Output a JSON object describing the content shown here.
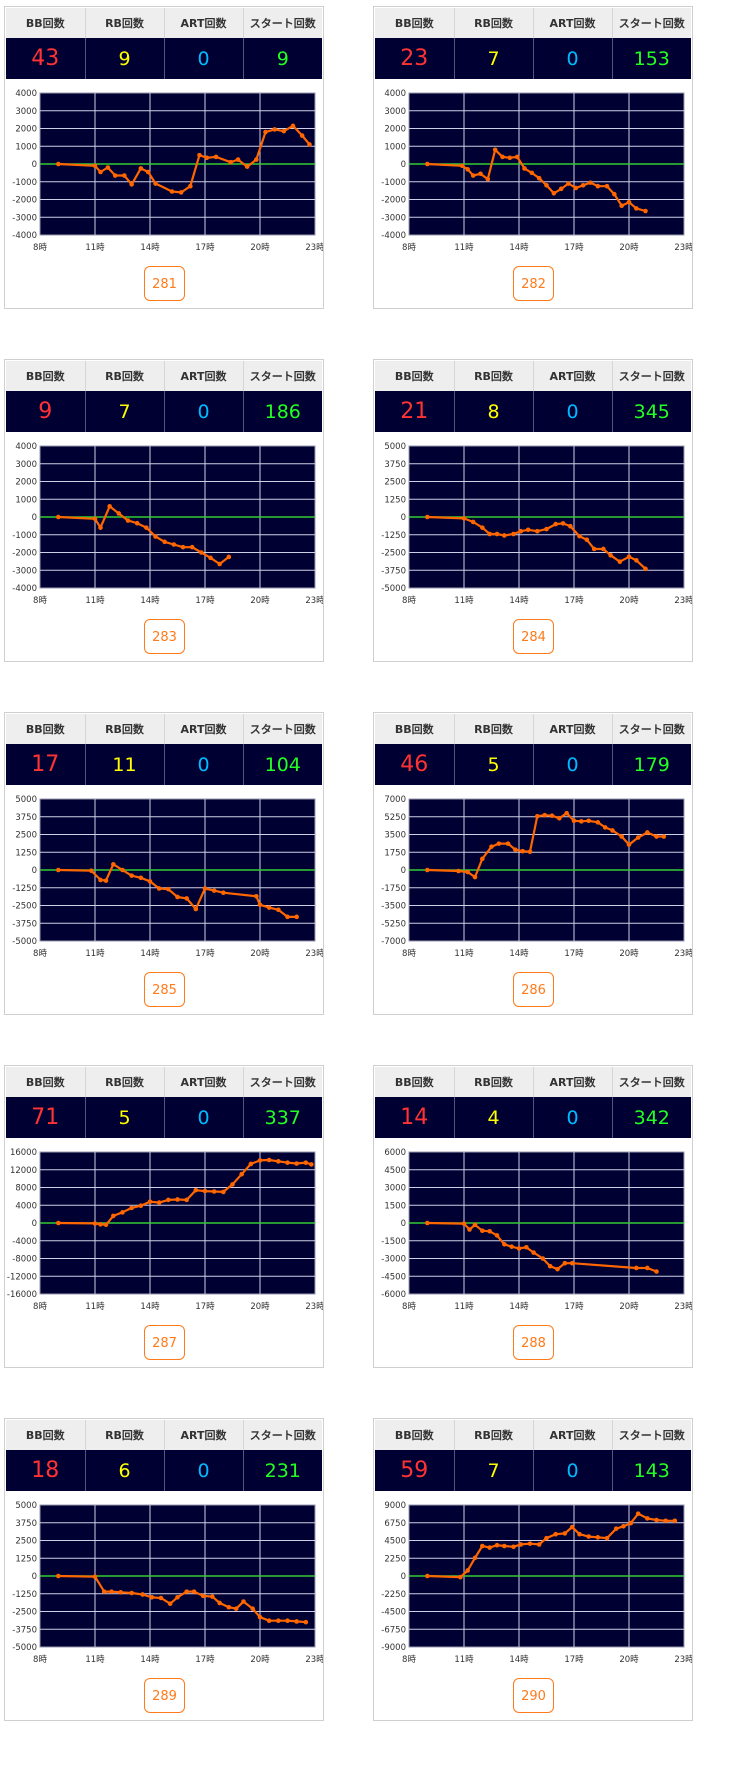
{
  "headers": {
    "bb": "BB回数",
    "rb": "RB回数",
    "art": "ART回数",
    "start": "スタート回数"
  },
  "colors": {
    "bb": "#ff3333",
    "rb": "#ffff00",
    "art": "#00bbff",
    "start": "#22ff22",
    "plot_bg": "#000033",
    "line": "#ff6600",
    "zero_line": "#33cc33",
    "button": "#ff7a1a"
  },
  "x_ticks": [
    "8時",
    "11時",
    "14時",
    "17時",
    "20時",
    "23時"
  ],
  "machines": [
    {
      "id": "281",
      "bb": "43",
      "rb": "9",
      "art": "0",
      "start": "9",
      "chart_data": {
        "type": "line",
        "xlim": [
          8,
          23
        ],
        "ylim": [
          -4000,
          4000
        ],
        "yticks": [
          "4000",
          "3000",
          "2000",
          "1000",
          "0",
          "-1000",
          "-2000",
          "-3000",
          "-4000"
        ],
        "x": [
          9,
          11,
          11.3,
          11.7,
          12.1,
          12.6,
          13,
          13.5,
          13.9,
          14.3,
          15.2,
          15.7,
          16.2,
          16.7,
          17.1,
          17.6,
          18.4,
          18.8,
          19.3,
          19.8,
          20.3,
          20.8,
          21.3,
          21.8,
          22.3,
          22.7
        ],
        "y": [
          0,
          -100,
          -450,
          -200,
          -650,
          -650,
          -1150,
          -250,
          -450,
          -1100,
          -1550,
          -1600,
          -1250,
          500,
          350,
          400,
          100,
          250,
          -150,
          250,
          1800,
          1950,
          1850,
          2150,
          1600,
          1100
        ]
      }
    },
    {
      "id": "282",
      "bb": "23",
      "rb": "7",
      "art": "0",
      "start": "153",
      "chart_data": {
        "type": "line",
        "xlim": [
          8,
          23
        ],
        "ylim": [
          -4000,
          4000
        ],
        "yticks": [
          "4000",
          "3000",
          "2000",
          "1000",
          "0",
          "-1000",
          "-2000",
          "-3000",
          "-4000"
        ],
        "x": [
          9,
          10.9,
          11.2,
          11.5,
          11.9,
          12.3,
          12.7,
          13.1,
          13.5,
          13.9,
          14.3,
          14.7,
          15.1,
          15.5,
          15.9,
          16.3,
          16.7,
          17.1,
          17.5,
          17.9,
          18.3,
          18.8,
          19.2,
          19.6,
          20,
          20.4,
          20.9
        ],
        "y": [
          0,
          -100,
          -300,
          -650,
          -550,
          -850,
          800,
          400,
          350,
          400,
          -250,
          -500,
          -800,
          -1200,
          -1650,
          -1400,
          -1100,
          -1350,
          -1200,
          -1050,
          -1250,
          -1250,
          -1700,
          -2350,
          -2150,
          -2500,
          -2650
        ]
      }
    },
    {
      "id": "283",
      "bb": "9",
      "rb": "7",
      "art": "0",
      "start": "186",
      "chart_data": {
        "type": "line",
        "xlim": [
          8,
          23
        ],
        "ylim": [
          -4000,
          4000
        ],
        "yticks": [
          "4000",
          "3000",
          "2000",
          "1000",
          "0",
          "-1000",
          "-2000",
          "-3000",
          "-4000"
        ],
        "x": [
          9,
          11,
          11.3,
          11.8,
          12.3,
          12.8,
          13.3,
          13.8,
          14.3,
          14.8,
          15.3,
          15.8,
          16.3,
          16.8,
          17.3,
          17.8,
          18.3
        ],
        "y": [
          0,
          -100,
          -600,
          600,
          200,
          -200,
          -350,
          -600,
          -1100,
          -1400,
          -1550,
          -1700,
          -1700,
          -2000,
          -2300,
          -2650,
          -2250
        ]
      }
    },
    {
      "id": "284",
      "bb": "21",
      "rb": "8",
      "art": "0",
      "start": "345",
      "chart_data": {
        "type": "line",
        "xlim": [
          8,
          23
        ],
        "ylim": [
          -5000,
          5000
        ],
        "yticks": [
          "5000",
          "3750",
          "2500",
          "1250",
          "0",
          "-1250",
          "-2500",
          "-3750",
          "-5000"
        ],
        "x": [
          9,
          11,
          11.5,
          12,
          12.4,
          12.8,
          13.2,
          13.7,
          14.1,
          14.5,
          15,
          15.5,
          16,
          16.4,
          16.8,
          17.3,
          17.7,
          18.1,
          18.6,
          19,
          19.5,
          20,
          20.4,
          20.9
        ],
        "y": [
          0,
          -100,
          -350,
          -750,
          -1200,
          -1200,
          -1300,
          -1200,
          -1000,
          -900,
          -1000,
          -850,
          -500,
          -450,
          -650,
          -1350,
          -1600,
          -2250,
          -2250,
          -2700,
          -3150,
          -2800,
          -3050,
          -3650
        ]
      }
    },
    {
      "id": "285",
      "bb": "17",
      "rb": "11",
      "art": "0",
      "start": "104",
      "chart_data": {
        "type": "line",
        "xlim": [
          8,
          23
        ],
        "ylim": [
          -5000,
          5000
        ],
        "yticks": [
          "5000",
          "3750",
          "2500",
          "1250",
          "0",
          "-1250",
          "-2500",
          "-3750",
          "-5000"
        ],
        "x": [
          9,
          10.8,
          11.3,
          11.6,
          12,
          12.5,
          13,
          13.5,
          14,
          14.5,
          15,
          15.5,
          16,
          16.5,
          17,
          17.5,
          18,
          19.8,
          20,
          20.5,
          21,
          21.5,
          22
        ],
        "y": [
          0,
          -50,
          -700,
          -750,
          400,
          0,
          -400,
          -550,
          -800,
          -1300,
          -1350,
          -1900,
          -2000,
          -2750,
          -1300,
          -1450,
          -1600,
          -1850,
          -2450,
          -2650,
          -2800,
          -3300,
          -3300
        ]
      }
    },
    {
      "id": "286",
      "bb": "46",
      "rb": "5",
      "art": "0",
      "start": "179",
      "chart_data": {
        "type": "line",
        "xlim": [
          8,
          23
        ],
        "ylim": [
          -7000,
          7000
        ],
        "yticks": [
          "7000",
          "5250",
          "3500",
          "1750",
          "0",
          "-1750",
          "-3500",
          "-5250",
          "-7000"
        ],
        "x": [
          9,
          10.7,
          11.2,
          11.6,
          12,
          12.5,
          12.9,
          13.4,
          13.8,
          14.2,
          14.6,
          15,
          15.4,
          15.8,
          16.2,
          16.6,
          17,
          17.4,
          17.8,
          18.3,
          18.7,
          19.1,
          19.6,
          20,
          20.5,
          21,
          21.5,
          21.9
        ],
        "y": [
          0,
          -100,
          -200,
          -700,
          1100,
          2300,
          2600,
          2600,
          2000,
          1850,
          1800,
          5300,
          5400,
          5350,
          5100,
          5600,
          4850,
          4800,
          4850,
          4700,
          4200,
          3900,
          3300,
          2500,
          3200,
          3700,
          3300,
          3300
        ]
      }
    },
    {
      "id": "287",
      "bb": "71",
      "rb": "5",
      "art": "0",
      "start": "337",
      "chart_data": {
        "type": "line",
        "xlim": [
          8,
          23
        ],
        "ylim": [
          -16000,
          16000
        ],
        "yticks": [
          "16000",
          "12000",
          "8000",
          "4000",
          "0",
          "-4000",
          "-8000",
          "-12000",
          "-16000"
        ],
        "x": [
          9,
          11,
          11.3,
          11.6,
          12,
          12.5,
          13,
          13.5,
          14,
          14.5,
          15,
          15.5,
          16,
          16.5,
          17,
          17.5,
          18,
          18.5,
          19,
          19.5,
          20,
          20.5,
          21,
          21.5,
          22,
          22.5,
          22.8
        ],
        "y": [
          0,
          -100,
          -300,
          -400,
          1600,
          2400,
          3400,
          3900,
          4800,
          4600,
          5200,
          5300,
          5200,
          7400,
          7200,
          7100,
          7000,
          8700,
          11000,
          13300,
          14100,
          14200,
          13900,
          13600,
          13400,
          13600,
          13200
        ]
      }
    },
    {
      "id": "288",
      "bb": "14",
      "rb": "4",
      "art": "0",
      "start": "342",
      "chart_data": {
        "type": "line",
        "xlim": [
          8,
          23
        ],
        "ylim": [
          -6000,
          6000
        ],
        "yticks": [
          "6000",
          "4500",
          "3000",
          "1500",
          "0",
          "-1500",
          "-3000",
          "-4500",
          "-6000"
        ],
        "x": [
          9,
          11,
          11.3,
          11.6,
          12,
          12.4,
          12.8,
          13.2,
          13.6,
          14,
          14.4,
          14.8,
          15.3,
          15.7,
          16.1,
          16.5,
          16.9,
          20.4,
          21,
          21.5
        ],
        "y": [
          0,
          -50,
          -550,
          -150,
          -650,
          -700,
          -1050,
          -1800,
          -2000,
          -2150,
          -2050,
          -2500,
          -3000,
          -3650,
          -3900,
          -3400,
          -3400,
          -3800,
          -3800,
          -4100
        ]
      }
    },
    {
      "id": "289",
      "bb": "18",
      "rb": "6",
      "art": "0",
      "start": "231",
      "chart_data": {
        "type": "line",
        "xlim": [
          8,
          23
        ],
        "ylim": [
          -5000,
          5000
        ],
        "yticks": [
          "5000",
          "3750",
          "2500",
          "1250",
          "0",
          "-1250",
          "-2500",
          "-3750",
          "-5000"
        ],
        "x": [
          9,
          11,
          11.5,
          11.9,
          12.4,
          13,
          13.6,
          14.1,
          14.6,
          15.1,
          15.5,
          16,
          16.4,
          16.9,
          17.4,
          17.8,
          18.3,
          18.7,
          19.1,
          19.6,
          20,
          20.5,
          21,
          21.5,
          22,
          22.5
        ],
        "y": [
          0,
          -50,
          -1100,
          -1100,
          -1150,
          -1200,
          -1300,
          -1500,
          -1550,
          -1950,
          -1500,
          -1100,
          -1100,
          -1400,
          -1450,
          -1900,
          -2200,
          -2300,
          -1800,
          -2300,
          -2900,
          -3150,
          -3150,
          -3150,
          -3200,
          -3250
        ]
      }
    },
    {
      "id": "290",
      "bb": "59",
      "rb": "7",
      "art": "0",
      "start": "143",
      "chart_data": {
        "type": "line",
        "xlim": [
          8,
          23
        ],
        "ylim": [
          -9000,
          9000
        ],
        "yticks": [
          "9000",
          "6750",
          "4500",
          "2250",
          "0",
          "-2250",
          "-4500",
          "-6750",
          "-9000"
        ],
        "x": [
          9,
          10.8,
          11.2,
          11.6,
          12,
          12.4,
          12.8,
          13.2,
          13.7,
          14.1,
          14.6,
          15.1,
          15.5,
          16,
          16.5,
          16.9,
          17.3,
          17.8,
          18.3,
          18.8,
          19.3,
          19.7,
          20.1,
          20.5,
          21,
          21.5,
          22,
          22.5
        ],
        "y": [
          0,
          -150,
          700,
          2300,
          3800,
          3600,
          3900,
          3800,
          3700,
          4000,
          4100,
          4000,
          4800,
          5300,
          5400,
          6200,
          5300,
          5000,
          4900,
          4800,
          6000,
          6300,
          6700,
          7900,
          7300,
          7100,
          7000,
          7000
        ]
      }
    }
  ]
}
